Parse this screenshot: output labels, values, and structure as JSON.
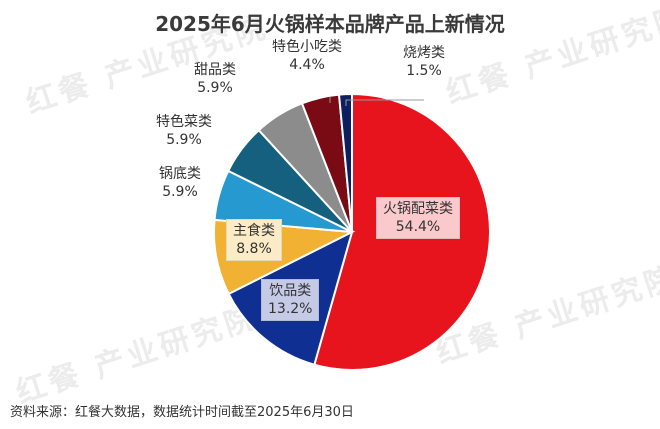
{
  "chart_data": {
    "type": "pie",
    "title": "2025年6月火锅样本品牌产品上新情况",
    "slices": [
      {
        "name": "火锅配菜类",
        "value": 54.4,
        "label": "54.4%",
        "color": "#e8141d"
      },
      {
        "name": "饮品类",
        "value": 13.2,
        "label": "13.2%",
        "color": "#0f2f92"
      },
      {
        "name": "主食类",
        "value": 8.8,
        "label": "8.8%",
        "color": "#f1b133"
      },
      {
        "name": "锅底类",
        "value": 5.9,
        "label": "5.9%",
        "color": "#2799d1"
      },
      {
        "name": "特色菜类",
        "value": 5.9,
        "label": "5.9%",
        "color": "#15607f"
      },
      {
        "name": "甜品类",
        "value": 5.9,
        "label": "5.9%",
        "color": "#8c8c8c"
      },
      {
        "name": "特色小吃类",
        "value": 4.4,
        "label": "4.4%",
        "color": "#7a0b14"
      },
      {
        "name": "烧烤类",
        "value": 1.5,
        "label": "1.5%",
        "color": "#0d1f5e"
      }
    ],
    "start": "12 o'clock",
    "direction": "clockwise"
  },
  "watermark": "红餐 产业研究院",
  "source_note": "资料来源：红餐大数据，数据统计时间截至2025年6月30日"
}
